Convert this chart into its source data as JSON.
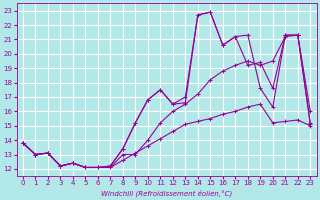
{
  "xlabel": "Windchill (Refroidissement éolien,°C)",
  "bg_color": "#b3e8e8",
  "grid_color": "#ffffff",
  "line_color": "#990099",
  "x_ticks": [
    0,
    1,
    2,
    3,
    4,
    5,
    6,
    7,
    8,
    9,
    10,
    11,
    12,
    13,
    14,
    15,
    16,
    17,
    18,
    19,
    20,
    21,
    22,
    23
  ],
  "xlim": [
    -0.5,
    23.5
  ],
  "ylim": [
    11.5,
    23.5
  ],
  "y_ticks": [
    12,
    13,
    14,
    15,
    16,
    17,
    18,
    19,
    20,
    21,
    22,
    23
  ],
  "figwidth": 3.2,
  "figheight": 2.0,
  "lines": [
    {
      "x": [
        0,
        1,
        2,
        3,
        4,
        5,
        6,
        7,
        8,
        9,
        10,
        11,
        12,
        13,
        14,
        15,
        16,
        17,
        18,
        19,
        20,
        21,
        22,
        23
      ],
      "y": [
        13.8,
        13.0,
        13.1,
        12.2,
        12.4,
        12.1,
        12.1,
        12.1,
        12.6,
        13.1,
        13.6,
        14.1,
        14.6,
        15.1,
        15.3,
        15.5,
        15.8,
        16.0,
        16.3,
        16.5,
        15.2,
        15.3,
        15.4,
        15.0
      ]
    },
    {
      "x": [
        0,
        1,
        2,
        3,
        4,
        5,
        6,
        7,
        8,
        9,
        10,
        11,
        12,
        13,
        14,
        15,
        16,
        17,
        18,
        19,
        20,
        21,
        22,
        23
      ],
      "y": [
        13.8,
        13.0,
        13.1,
        12.2,
        12.4,
        12.1,
        12.1,
        12.1,
        13.0,
        13.0,
        14.0,
        15.2,
        16.0,
        16.5,
        17.2,
        18.2,
        18.8,
        19.2,
        19.5,
        19.2,
        19.5,
        21.2,
        21.3,
        15.1
      ]
    },
    {
      "x": [
        0,
        1,
        2,
        3,
        4,
        5,
        6,
        7,
        8,
        9,
        10,
        11,
        12,
        13,
        14,
        15,
        16,
        17,
        18,
        19,
        20,
        21,
        22,
        23
      ],
      "y": [
        13.8,
        13.0,
        13.1,
        12.2,
        12.4,
        12.1,
        12.1,
        12.2,
        13.4,
        15.2,
        16.8,
        17.5,
        16.5,
        16.6,
        22.7,
        22.9,
        20.6,
        21.2,
        21.3,
        17.6,
        16.3,
        21.3,
        21.3,
        16.0
      ]
    },
    {
      "x": [
        0,
        1,
        2,
        3,
        4,
        5,
        6,
        7,
        8,
        9,
        10,
        11,
        12,
        13,
        14,
        15,
        16,
        17,
        18,
        19,
        20,
        21,
        22,
        23
      ],
      "y": [
        13.8,
        13.0,
        13.1,
        12.2,
        12.4,
        12.1,
        12.1,
        12.2,
        13.4,
        15.2,
        16.8,
        17.5,
        16.5,
        17.0,
        22.7,
        22.9,
        20.6,
        21.2,
        19.2,
        19.4,
        17.6,
        21.3,
        21.3,
        15.2
      ]
    }
  ]
}
